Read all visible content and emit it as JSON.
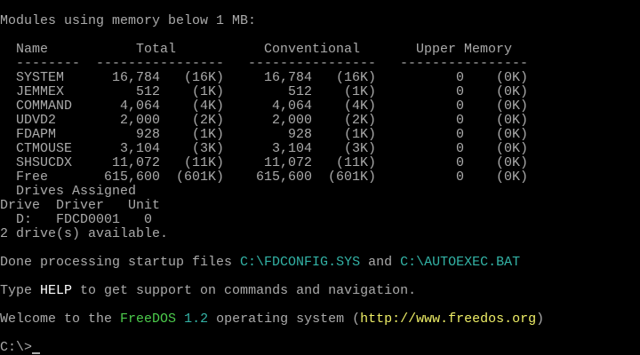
{
  "colors": {
    "default": "#aaaaaa",
    "file": "#33b3a6",
    "help": "#ffffff",
    "brand": "#4ccc4c",
    "version": "#33b3a6",
    "url": "#eeee66"
  },
  "mem": {
    "title": "Modules using memory below 1 MB:",
    "headers": {
      "name": "Name",
      "total": "Total",
      "conventional": "Conventional",
      "upper": "Upper Memory"
    },
    "rows": [
      {
        "name": "SYSTEM",
        "total": "16,784",
        "total_k": "(16K)",
        "conv": "16,784",
        "conv_k": "(16K)",
        "upper": "0",
        "upper_k": "(0K)"
      },
      {
        "name": "JEMMEX",
        "total": "512",
        "total_k": "(1K)",
        "conv": "512",
        "conv_k": "(1K)",
        "upper": "0",
        "upper_k": "(0K)"
      },
      {
        "name": "COMMAND",
        "total": "4,064",
        "total_k": "(4K)",
        "conv": "4,064",
        "conv_k": "(4K)",
        "upper": "0",
        "upper_k": "(0K)"
      },
      {
        "name": "UDVD2",
        "total": "2,000",
        "total_k": "(2K)",
        "conv": "2,000",
        "conv_k": "(2K)",
        "upper": "0",
        "upper_k": "(0K)"
      },
      {
        "name": "FDAPM",
        "total": "928",
        "total_k": "(1K)",
        "conv": "928",
        "conv_k": "(1K)",
        "upper": "0",
        "upper_k": "(0K)"
      },
      {
        "name": "CTMOUSE",
        "total": "3,104",
        "total_k": "(3K)",
        "conv": "3,104",
        "conv_k": "(3K)",
        "upper": "0",
        "upper_k": "(0K)"
      },
      {
        "name": "SHSUCDX",
        "total": "11,072",
        "total_k": "(11K)",
        "conv": "11,072",
        "conv_k": "(11K)",
        "upper": "0",
        "upper_k": "(0K)"
      },
      {
        "name": "Free",
        "total": "615,600",
        "total_k": "(601K)",
        "conv": "615,600",
        "conv_k": "(601K)",
        "upper": "0",
        "upper_k": "(0K)"
      }
    ]
  },
  "drives": {
    "title": "Drives Assigned",
    "headers": {
      "drive": "Drive",
      "driver": "Driver",
      "unit": "Unit"
    },
    "rows": [
      {
        "drive": "D:",
        "driver": "FDCD0001",
        "unit": "0"
      }
    ],
    "summary": "2 drive(s) available."
  },
  "startup": {
    "prefix": "Done processing startup files ",
    "file1": "C:\\FDCONFIG.SYS",
    "middle": " and ",
    "file2": "C:\\AUTOEXEC.BAT"
  },
  "help": {
    "prefix": "Type ",
    "command": "HELP",
    "suffix": " to get support on commands and navigation."
  },
  "welcome": {
    "prefix": "Welcome to the ",
    "brand": "FreeDOS",
    "space": " ",
    "version": "1.2",
    "middle": " operating system (",
    "url": "http://www.freedos.org",
    "suffix": ")"
  },
  "prompt": "C:\\>"
}
